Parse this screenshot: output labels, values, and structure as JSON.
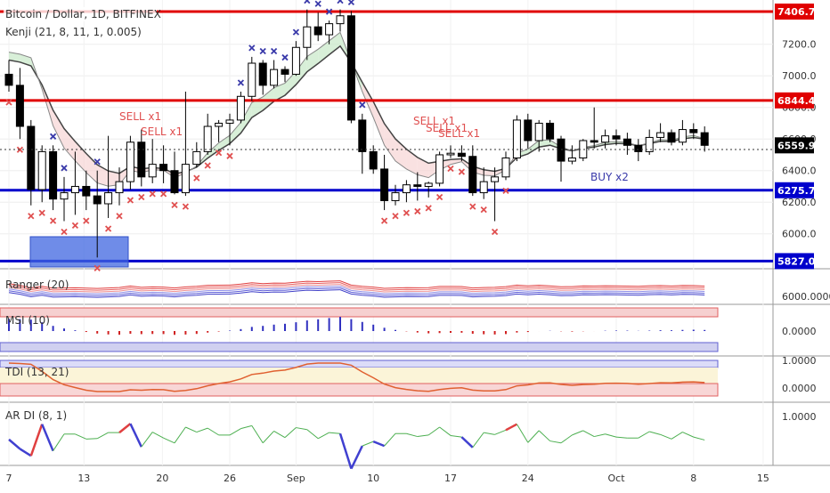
{
  "header": {
    "symbol_title": "Bitcoin / Dollar, 1D, BITFINEX",
    "indicator_label": "Kenji (21, 8, 11, 1, 0.005)"
  },
  "colors": {
    "bull_candle": "#ffffff",
    "bear_candle": "#000000",
    "resistance_line": "#e00000",
    "support_line": "#0000cc",
    "sell_marker": "#e05050",
    "buy_marker": "#3a3aaa",
    "ranger_red": "#e04040",
    "ranger_blue": "#4040d0",
    "tdi_line": "#e06030",
    "ar_green": "#4caf50"
  },
  "chart_data": [
    {
      "type": "candlestick",
      "title": "Bitcoin / Dollar, 1D, BITFINEX",
      "x_ticks": [
        "7",
        "13",
        "20",
        "26",
        "Sep",
        "10",
        "17",
        "24",
        "Oct",
        "8",
        "15"
      ],
      "y_ticks": [
        6000,
        6200,
        6400,
        6600,
        6800,
        7000,
        7200
      ],
      "ylim": [
        5790,
        7480
      ],
      "grid": true,
      "price_labels": [
        {
          "text": "7406.7",
          "value": 7406.7,
          "color": "#e00000"
        },
        {
          "text": "6844.4",
          "value": 6844.4,
          "color": "#e00000"
        },
        {
          "text": "6559.9",
          "value": 6559.9,
          "color": "#000000"
        },
        {
          "text": "6275.7",
          "value": 6275.7,
          "color": "#0000cc"
        },
        {
          "text": "5827.0",
          "value": 5827.0,
          "color": "#0000cc"
        }
      ],
      "horizontal_levels": [
        7406.7,
        6844.4,
        6275.7,
        5827.0
      ],
      "annotations": [
        "SELL x1",
        "SELL x1",
        "SELL x1",
        "SELL x1",
        "SELL x1",
        "BUY x2"
      ],
      "candles": [
        {
          "o": 7010,
          "h": 7100,
          "l": 6900,
          "c": 6940
        },
        {
          "o": 6940,
          "h": 7050,
          "l": 6600,
          "c": 6680
        },
        {
          "o": 6680,
          "h": 6720,
          "l": 6180,
          "c": 6280
        },
        {
          "o": 6280,
          "h": 6560,
          "l": 6200,
          "c": 6520
        },
        {
          "o": 6520,
          "h": 6560,
          "l": 6150,
          "c": 6220
        },
        {
          "o": 6220,
          "h": 6360,
          "l": 6080,
          "c": 6260
        },
        {
          "o": 6260,
          "h": 6520,
          "l": 6120,
          "c": 6300
        },
        {
          "o": 6300,
          "h": 6400,
          "l": 6150,
          "c": 6240
        },
        {
          "o": 6240,
          "h": 6400,
          "l": 5850,
          "c": 6190
        },
        {
          "o": 6190,
          "h": 6620,
          "l": 6100,
          "c": 6260
        },
        {
          "o": 6260,
          "h": 6420,
          "l": 6180,
          "c": 6330
        },
        {
          "o": 6330,
          "h": 6620,
          "l": 6280,
          "c": 6580
        },
        {
          "o": 6580,
          "h": 6660,
          "l": 6300,
          "c": 6360
        },
        {
          "o": 6360,
          "h": 6600,
          "l": 6320,
          "c": 6440
        },
        {
          "o": 6440,
          "h": 6560,
          "l": 6320,
          "c": 6400
        },
        {
          "o": 6400,
          "h": 6520,
          "l": 6250,
          "c": 6260
        },
        {
          "o": 6260,
          "h": 6900,
          "l": 6240,
          "c": 6440
        },
        {
          "o": 6440,
          "h": 6580,
          "l": 6420,
          "c": 6520
        },
        {
          "o": 6520,
          "h": 6760,
          "l": 6500,
          "c": 6680
        },
        {
          "o": 6680,
          "h": 6720,
          "l": 6580,
          "c": 6700
        },
        {
          "o": 6700,
          "h": 6760,
          "l": 6560,
          "c": 6720
        },
        {
          "o": 6720,
          "h": 6900,
          "l": 6700,
          "c": 6870
        },
        {
          "o": 6870,
          "h": 7120,
          "l": 6840,
          "c": 7080
        },
        {
          "o": 7080,
          "h": 7100,
          "l": 6880,
          "c": 6940
        },
        {
          "o": 6940,
          "h": 7100,
          "l": 6920,
          "c": 7040
        },
        {
          "o": 7040,
          "h": 7060,
          "l": 6960,
          "c": 7010
        },
        {
          "o": 7010,
          "h": 7220,
          "l": 7000,
          "c": 7180
        },
        {
          "o": 7180,
          "h": 7420,
          "l": 7100,
          "c": 7310
        },
        {
          "o": 7310,
          "h": 7400,
          "l": 7220,
          "c": 7260
        },
        {
          "o": 7260,
          "h": 7350,
          "l": 7200,
          "c": 7330
        },
        {
          "o": 7330,
          "h": 7420,
          "l": 7280,
          "c": 7380
        },
        {
          "o": 7380,
          "h": 7410,
          "l": 6700,
          "c": 6720
        },
        {
          "o": 6720,
          "h": 6760,
          "l": 6380,
          "c": 6520
        },
        {
          "o": 6520,
          "h": 6560,
          "l": 6380,
          "c": 6410
        },
        {
          "o": 6410,
          "h": 6500,
          "l": 6150,
          "c": 6210
        },
        {
          "o": 6210,
          "h": 6310,
          "l": 6180,
          "c": 6260
        },
        {
          "o": 6260,
          "h": 6340,
          "l": 6200,
          "c": 6310
        },
        {
          "o": 6310,
          "h": 6390,
          "l": 6210,
          "c": 6300
        },
        {
          "o": 6300,
          "h": 6330,
          "l": 6230,
          "c": 6320
        },
        {
          "o": 6320,
          "h": 6520,
          "l": 6300,
          "c": 6500
        },
        {
          "o": 6500,
          "h": 6560,
          "l": 6480,
          "c": 6510
        },
        {
          "o": 6510,
          "h": 6560,
          "l": 6460,
          "c": 6490
        },
        {
          "o": 6490,
          "h": 6560,
          "l": 6240,
          "c": 6260
        },
        {
          "o": 6260,
          "h": 6420,
          "l": 6220,
          "c": 6330
        },
        {
          "o": 6330,
          "h": 6420,
          "l": 6080,
          "c": 6360
        },
        {
          "o": 6360,
          "h": 6520,
          "l": 6340,
          "c": 6480
        },
        {
          "o": 6480,
          "h": 6750,
          "l": 6460,
          "c": 6720
        },
        {
          "o": 6720,
          "h": 6760,
          "l": 6540,
          "c": 6590
        },
        {
          "o": 6590,
          "h": 6720,
          "l": 6520,
          "c": 6700
        },
        {
          "o": 6700,
          "h": 6720,
          "l": 6580,
          "c": 6600
        },
        {
          "o": 6600,
          "h": 6620,
          "l": 6330,
          "c": 6460
        },
        {
          "o": 6460,
          "h": 6560,
          "l": 6440,
          "c": 6480
        },
        {
          "o": 6480,
          "h": 6600,
          "l": 6460,
          "c": 6590
        },
        {
          "o": 6590,
          "h": 6800,
          "l": 6540,
          "c": 6580
        },
        {
          "o": 6580,
          "h": 6660,
          "l": 6540,
          "c": 6620
        },
        {
          "o": 6620,
          "h": 6660,
          "l": 6560,
          "c": 6600
        },
        {
          "o": 6600,
          "h": 6640,
          "l": 6500,
          "c": 6560
        },
        {
          "o": 6560,
          "h": 6600,
          "l": 6460,
          "c": 6520
        },
        {
          "o": 6520,
          "h": 6660,
          "l": 6500,
          "c": 6610
        },
        {
          "o": 6610,
          "h": 6700,
          "l": 6580,
          "c": 6640
        },
        {
          "o": 6640,
          "h": 6660,
          "l": 6560,
          "c": 6580
        },
        {
          "o": 6580,
          "h": 6720,
          "l": 6560,
          "c": 6660
        },
        {
          "o": 6660,
          "h": 6700,
          "l": 6600,
          "c": 6640
        },
        {
          "o": 6640,
          "h": 6680,
          "l": 6520,
          "c": 6560
        }
      ]
    },
    {
      "type": "line",
      "title": "Ranger (20)",
      "y_ticks": [
        "6000.0000"
      ]
    },
    {
      "type": "bar",
      "title": "MSI (10)",
      "y_ticks": [
        "0.0000"
      ]
    },
    {
      "type": "line",
      "title": "TDI (13, 21)",
      "y_ticks": [
        "1.0000",
        "0.0000"
      ]
    },
    {
      "type": "line",
      "title": "AR DI (8, 1)",
      "y_ticks": [
        "1.0000"
      ]
    }
  ]
}
